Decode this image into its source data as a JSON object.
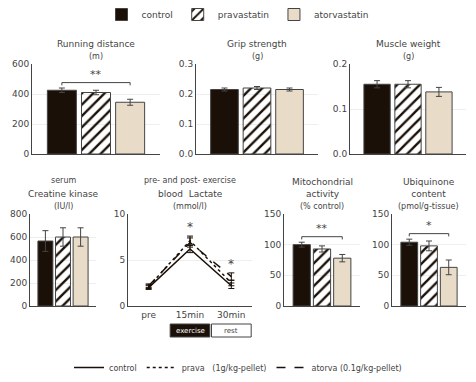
{
  "chart_data": [
    {
      "type": "bar",
      "title": "Running distance",
      "ylabel": "(m)",
      "categories": [
        null
      ],
      "series": [
        {
          "name": "control",
          "color": "#1a1008",
          "values": [
            425
          ],
          "errors": [
            15
          ]
        },
        {
          "name": "pravastatin",
          "color": "#1a1008",
          "marker": "hatched",
          "values": [
            410
          ],
          "errors": [
            15
          ]
        },
        {
          "name": "atorvastatin",
          "color": "#e8dcc8",
          "values": [
            345
          ],
          "errors": [
            20
          ]
        }
      ],
      "ylim": [
        0,
        600
      ],
      "yticks": [
        0,
        200,
        400,
        600
      ],
      "grid": true,
      "tick_labels": "y",
      "legend": "top",
      "annotations": [
        {
          "text": "**",
          "between": [
            "control",
            "atorvastatin"
          ]
        }
      ]
    },
    {
      "type": "bar",
      "title": "Grip strength",
      "ylabel": "(g)",
      "categories": [
        null
      ],
      "series": [
        {
          "name": "control",
          "color": "#1a1008",
          "values": [
            0.215
          ],
          "errors": [
            0.005
          ]
        },
        {
          "name": "pravastatin",
          "color": "#1a1008",
          "marker": "hatched",
          "values": [
            0.22
          ],
          "errors": [
            0.005
          ]
        },
        {
          "name": "atorvastatin",
          "color": "#e8dcc8",
          "values": [
            0.215
          ],
          "errors": [
            0.005
          ]
        }
      ],
      "ylim": [
        0,
        0.3
      ],
      "yticks": [
        {
          "value": 0,
          "label": "0.0"
        },
        0.1,
        0.2,
        0.3
      ],
      "grid": true,
      "tick_labels": "y"
    },
    {
      "type": "bar",
      "title": "Muscle weight",
      "ylabel": "(g)",
      "categories": [
        null
      ],
      "series": [
        {
          "name": "control",
          "color": "#1a1008",
          "values": [
            0.155
          ],
          "errors": [
            0.008
          ]
        },
        {
          "name": "pravastatin",
          "color": "#1a1008",
          "marker": "hatched",
          "values": [
            0.155
          ],
          "errors": [
            0.008
          ]
        },
        {
          "name": "atorvastatin",
          "color": "#e8dcc8",
          "values": [
            0.138
          ],
          "errors": [
            0.01
          ]
        }
      ],
      "ylim": [
        0,
        0.2
      ],
      "yticks": [
        {
          "value": 0,
          "label": "0.0"
        },
        0.1,
        0.2
      ],
      "grid": true,
      "tick_labels": "y"
    },
    {
      "type": "bar",
      "subtitle": "serum",
      "title": "Creatine kinase",
      "ylabel": "(IU/l)",
      "categories": [
        null
      ],
      "series": [
        {
          "name": "control",
          "color": "#1a1008",
          "values": [
            565
          ],
          "errors": [
            90
          ]
        },
        {
          "name": "pravastatin",
          "color": "#1a1008",
          "marker": "hatched",
          "values": [
            600
          ],
          "errors": [
            80
          ]
        },
        {
          "name": "atorvastatin",
          "color": "#e8dcc8",
          "values": [
            600
          ],
          "errors": [
            80
          ]
        }
      ],
      "ylim": [
        0,
        800
      ],
      "yticks": [
        0,
        200,
        400,
        600,
        800
      ],
      "grid": true,
      "tick_labels": "y"
    },
    {
      "type": "line",
      "subtitle": "pre- and post- exercise",
      "title": "blood  Lactate",
      "ylabel": "(mmol/l)",
      "categories": [
        "pre",
        "15min",
        "30min"
      ],
      "series": [
        {
          "name": "control",
          "color": "#1a1008",
          "line_style": "solid",
          "values": [
            2.0,
            6.2,
            2.2
          ],
          "errors": [
            0.2,
            0.4,
            0.3
          ]
        },
        {
          "name": "prava   (1g/kg-pellet)",
          "color": "#1a1008",
          "line_style": "dotted",
          "values": [
            2.1,
            7.1,
            2.5
          ],
          "errors": [
            0.2,
            0.5,
            0.3
          ]
        },
        {
          "name": "atorva (0.1g/kg-pellet)",
          "color": "#1a1008",
          "line_style": "dashed",
          "values": [
            2.2,
            6.9,
            3.2
          ],
          "errors": [
            0.2,
            0.5,
            0.4
          ]
        }
      ],
      "ylim": [
        0,
        10
      ],
      "yticks": [
        0,
        5,
        10
      ],
      "grid": true,
      "legend": "bottom",
      "annotations": [
        {
          "text": "*",
          "category": "15min",
          "series": "prava   (1g/kg-pellet)"
        },
        {
          "text": "*",
          "category": "30min",
          "series": "atorva (0.1g/kg-pellet)"
        },
        {
          "text": "exercise",
          "category": "15min",
          "color": "#1a1008"
        },
        {
          "text": "rest",
          "category": "30min",
          "color": "#ffffff"
        }
      ]
    },
    {
      "type": "bar",
      "title": "Mitochondrial\nactivity",
      "ylabel": "(% control)",
      "categories": [
        null
      ],
      "series": [
        {
          "name": "control",
          "color": "#1a1008",
          "values": [
            100
          ],
          "errors": [
            4
          ]
        },
        {
          "name": "pravastatin",
          "color": "#1a1008",
          "marker": "hatched",
          "values": [
            93
          ],
          "errors": [
            5
          ]
        },
        {
          "name": "atorvastatin",
          "color": "#e8dcc8",
          "values": [
            78
          ],
          "errors": [
            6
          ]
        }
      ],
      "ylim": [
        0,
        150
      ],
      "yticks": [
        0,
        50,
        100,
        150
      ],
      "grid": true,
      "tick_labels": "y",
      "annotations": [
        {
          "text": "**",
          "between": [
            "control",
            "atorvastatin"
          ]
        }
      ]
    },
    {
      "type": "bar",
      "title": "Ubiquinone\ncontent",
      "ylabel": "(pmol/g-tissue)",
      "categories": [
        null
      ],
      "series": [
        {
          "name": "control",
          "color": "#1a1008",
          "values": [
            104
          ],
          "errors": [
            5
          ]
        },
        {
          "name": "pravastatin",
          "color": "#1a1008",
          "marker": "hatched",
          "values": [
            98
          ],
          "errors": [
            8
          ]
        },
        {
          "name": "atorvastatin",
          "color": "#e8dcc8",
          "values": [
            63
          ],
          "errors": [
            12
          ]
        }
      ],
      "ylim": [
        0,
        150
      ],
      "yticks": [
        0,
        50,
        100,
        150
      ],
      "grid": true,
      "tick_labels": "y",
      "annotations": [
        {
          "text": "*",
          "between": [
            "control",
            "atorvastatin"
          ]
        }
      ]
    }
  ]
}
